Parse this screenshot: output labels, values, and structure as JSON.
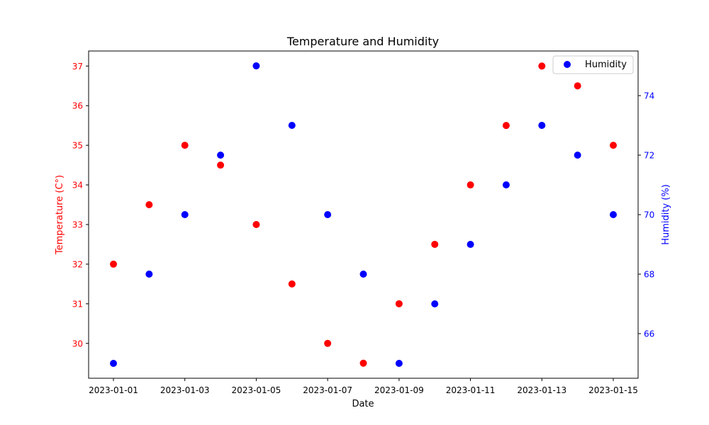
{
  "chart_data": {
    "type": "scatter",
    "title": "Temperature and Humidity",
    "xlabel": "Date",
    "ylabel_left": "Temperature (C°)",
    "ylabel_right": "Humidity (%)",
    "x": [
      "2023-01-01",
      "2023-01-02",
      "2023-01-03",
      "2023-01-04",
      "2023-01-05",
      "2023-01-06",
      "2023-01-07",
      "2023-01-08",
      "2023-01-09",
      "2023-01-10",
      "2023-01-11",
      "2023-01-12",
      "2023-01-13",
      "2023-01-14",
      "2023-01-15"
    ],
    "x_ticks": [
      "2023-01-01",
      "2023-01-03",
      "2023-01-05",
      "2023-01-07",
      "2023-01-09",
      "2023-01-11",
      "2023-01-13",
      "2023-01-15"
    ],
    "series": [
      {
        "axis": "left",
        "color": "#ff0000",
        "values": [
          32,
          33.5,
          35,
          34.5,
          33,
          31.5,
          30,
          29.5,
          31,
          32.5,
          34,
          35.5,
          37,
          36.5,
          35
        ]
      },
      {
        "name": "Humidity",
        "axis": "right",
        "color": "#0000ff",
        "values": [
          65,
          68,
          70,
          72,
          75,
          73,
          70,
          68,
          65,
          67,
          69,
          71,
          73,
          72,
          70
        ]
      }
    ],
    "ylim_left": [
      29.12,
      37.38
    ],
    "yticks_left": [
      30,
      31,
      32,
      33,
      34,
      35,
      36,
      37
    ],
    "ylim_right": [
      64.5,
      75.5
    ],
    "yticks_right": [
      66,
      68,
      70,
      72,
      74
    ],
    "left_axis_color": "#ff0000",
    "right_axis_color": "#0000ff",
    "legend": {
      "position": "top-right",
      "entries": [
        "Humidity"
      ]
    },
    "grid": false
  }
}
